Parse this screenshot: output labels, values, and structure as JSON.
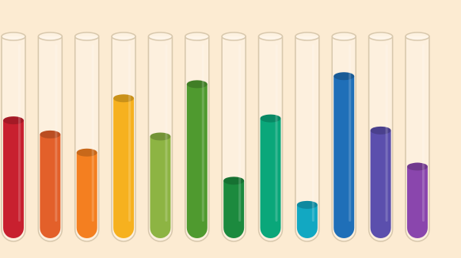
{
  "chart_data": {
    "type": "bar",
    "values": [
      59,
      52,
      43,
      70,
      51,
      77,
      29,
      60,
      17,
      81,
      54,
      36
    ],
    "colors": [
      "#c8202f",
      "#e3602a",
      "#f47f20",
      "#f6b11f",
      "#8db443",
      "#4f9a2f",
      "#1c8a3e",
      "#0aa77a",
      "#12a8c2",
      "#1f6fb8",
      "#5b4fad",
      "#8a46ad"
    ],
    "ylim": [
      0,
      100
    ]
  }
}
